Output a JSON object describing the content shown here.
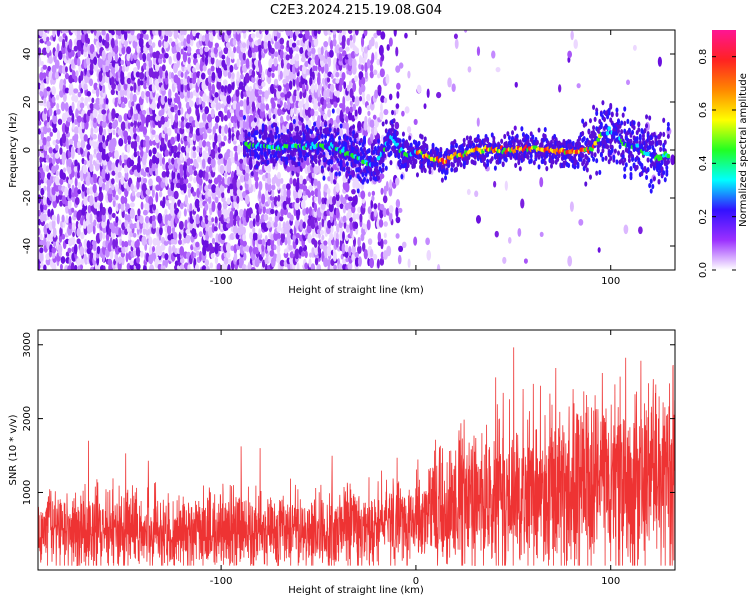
{
  "title": "C2E3.2024.215.19.08.G04",
  "chart_data": [
    {
      "type": "heatmap",
      "xlabel": "Height of straight line (km)",
      "ylabel": "Frequency (Hz)",
      "xlim": [
        -194,
        133
      ],
      "ylim": [
        -50,
        50
      ],
      "xticks": [
        -100,
        0,
        100
      ],
      "xtick_labels": [
        "-100",
        "",
        "100"
      ],
      "yticks": [
        -40,
        -20,
        0,
        20,
        40
      ],
      "ytick_labels": [
        "-40",
        "-20",
        "0",
        "20",
        "40"
      ],
      "grid": false,
      "colorbar": {
        "label": "Normalized spectral amplitude",
        "range": [
          0,
          0.9
        ],
        "ticks": [
          0.0,
          0.2,
          0.4,
          0.6,
          0.8
        ],
        "tick_labels": [
          "0.0",
          "0.2",
          "0.4",
          "0.6",
          "0.8"
        ],
        "colors": [
          "#ffffff",
          "#9b30ff",
          "#3311ff",
          "#00ffff",
          "#22ff22",
          "#ffff00",
          "#ff8800",
          "#ff2222",
          "#ff1493"
        ]
      },
      "signal_track": {
        "x": [
          -88,
          -70,
          -50,
          -40,
          -30,
          -25,
          -20,
          -15,
          -12,
          -10,
          -8,
          -5,
          0,
          5,
          10,
          15,
          20,
          25,
          30,
          40,
          50,
          60,
          70,
          80,
          90,
          95,
          100,
          105,
          110,
          115,
          120,
          125,
          130
        ],
        "y": [
          2,
          1,
          2,
          1,
          -3,
          -6,
          -5,
          2,
          5,
          3,
          0,
          -2,
          -1,
          -2,
          -4,
          -5,
          -2,
          -2,
          0,
          0,
          0,
          1,
          0,
          -1,
          0,
          6,
          8,
          4,
          2,
          0,
          -2,
          -3,
          -2
        ]
      }
    },
    {
      "type": "line",
      "xlabel": "Height of straight line (km)",
      "ylabel": "SNR (10 * v/v)",
      "xlim": [
        -194,
        133
      ],
      "ylim": [
        -50,
        3200
      ],
      "xticks": [
        -100,
        0,
        100
      ],
      "xtick_labels": [
        "-100",
        "0",
        "100"
      ],
      "yticks": [
        1000,
        2000,
        3000
      ],
      "ytick_labels": [
        "1000",
        "2000",
        "3000"
      ],
      "grid": false,
      "series": [
        {
          "color": "#ee3333",
          "x": [
            -194,
            -180,
            -160,
            -140,
            -120,
            -100,
            -80,
            -60,
            -40,
            -20,
            -10,
            0,
            10,
            20,
            30,
            40,
            50,
            60,
            70,
            80,
            90,
            100,
            110,
            120,
            133
          ],
          "values": [
            500,
            520,
            510,
            480,
            470,
            500,
            460,
            470,
            490,
            560,
            620,
            620,
            780,
            850,
            920,
            940,
            980,
            1020,
            1060,
            1080,
            1120,
            1180,
            1250,
            1230,
            1180
          ]
        }
      ]
    }
  ]
}
